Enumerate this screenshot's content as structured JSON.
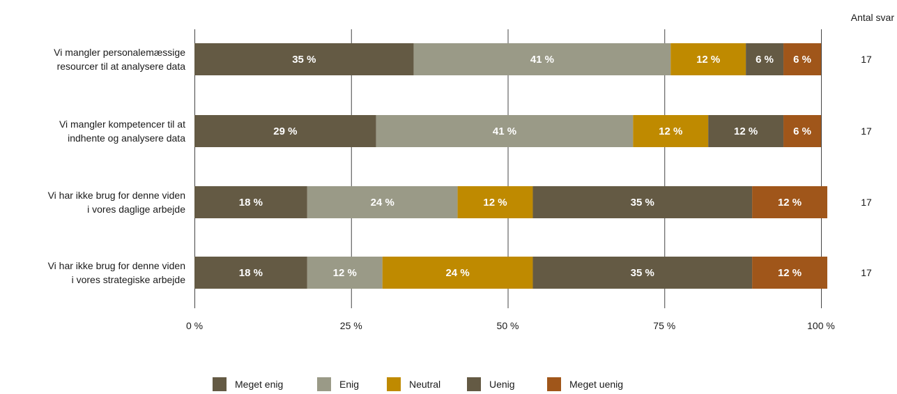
{
  "chart_data": {
    "type": "bar",
    "orientation": "horizontal",
    "stacked": true,
    "categories": [
      "Vi mangler personalemæssige\nresourcer til at analysere data",
      "Vi mangler kompetencer til at\nindhente og analysere data",
      "Vi har ikke brug for denne viden\ni vores daglige arbejde",
      "Vi har ikke brug for denne viden\ni vores strategiske arbejde"
    ],
    "series": [
      {
        "name": "Meget enig",
        "color": "#645a44",
        "values": [
          35,
          29,
          18,
          18
        ],
        "labels": [
          "35 %",
          "29 %",
          "18 %",
          "18 %"
        ]
      },
      {
        "name": "Enig",
        "color": "#9a9a87",
        "values": [
          41,
          41,
          24,
          12
        ],
        "labels": [
          "41 %",
          "41 %",
          "24 %",
          "12 %"
        ]
      },
      {
        "name": "Neutral",
        "color": "#bf8a00",
        "values": [
          12,
          12,
          12,
          24
        ],
        "labels": [
          "12 %",
          "12 %",
          "12 %",
          "24 %"
        ]
      },
      {
        "name": "Uenig",
        "color": "#645a44",
        "values": [
          6,
          12,
          35,
          35
        ],
        "labels": [
          "6 %",
          "12 %",
          "35 %",
          "35 %"
        ]
      },
      {
        "name": "Meget uenig",
        "color": "#a0561a",
        "values": [
          6,
          6,
          12,
          12
        ],
        "labels": [
          "6 %",
          "6 %",
          "12 %",
          "12 %"
        ]
      }
    ],
    "xlim": [
      0,
      100
    ],
    "x_ticks": [
      "0 %",
      "25 %",
      "50 %",
      "75 %",
      "100 %"
    ],
    "x_tick_values": [
      0,
      25,
      50,
      75,
      100
    ],
    "grid": true,
    "legend_position": "bottom",
    "count_header": "Antal svar",
    "counts": [
      "17",
      "17",
      "17",
      "17"
    ]
  }
}
